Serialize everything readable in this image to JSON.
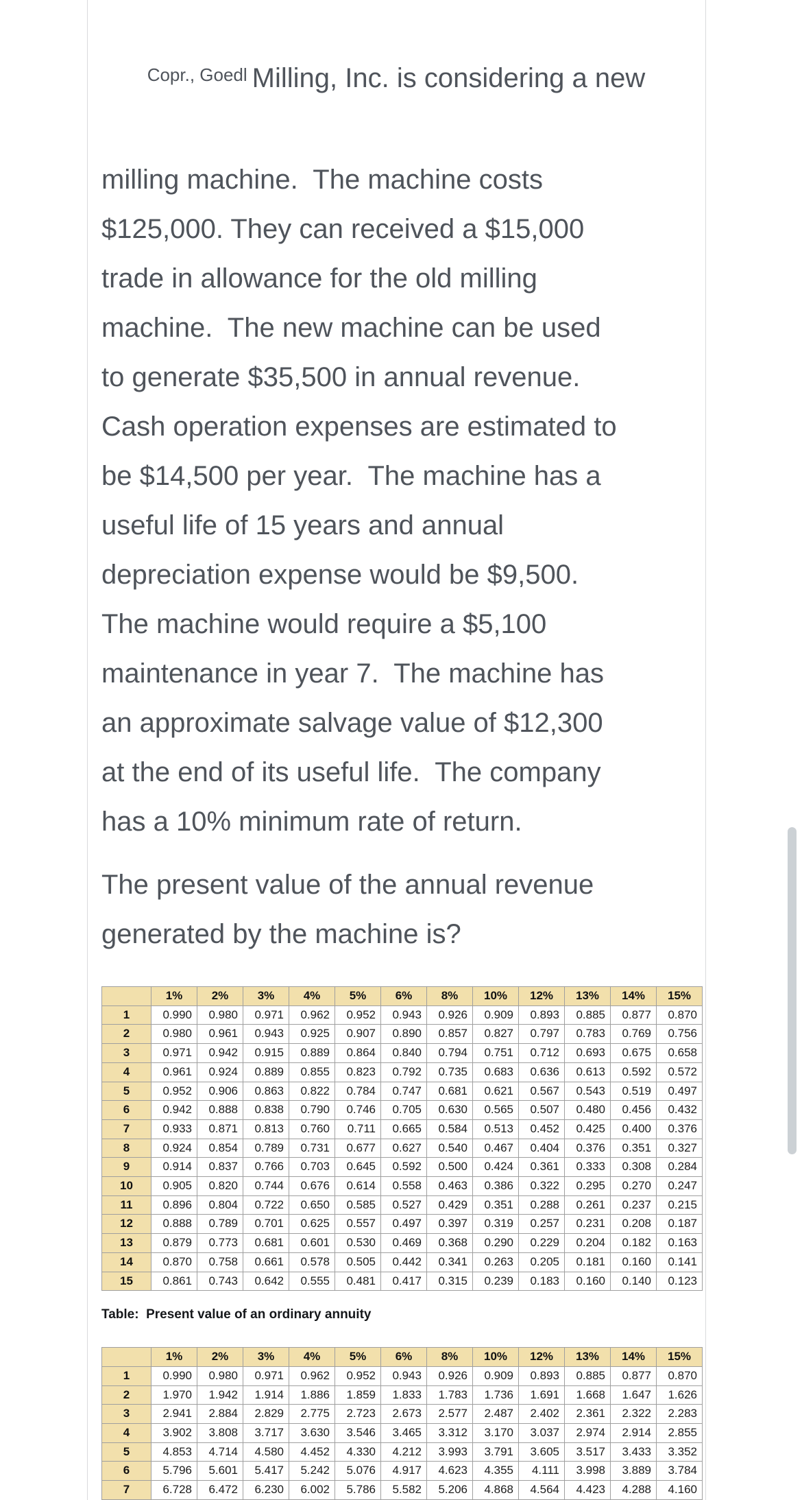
{
  "intro_paragraph": {
    "watermark": "Copr., Goedl",
    "first_line": "Milling, Inc. is considering a new",
    "lines": [
      "milling machine.  The machine costs",
      "$125,000. They can received a $15,000",
      "trade in allowance for the old milling",
      "machine.  The new machine can be used",
      "to generate $35,500 in annual revenue.",
      "Cash operation expenses are estimated to",
      "be $14,500 per year.  The machine has a",
      "useful life of 15 years and annual",
      "depreciation expense would be $9,500.",
      "The machine would require a $5,100",
      "maintenance in year 7.  The machine has",
      "an approximate salvage value of $12,300",
      "at the end of its useful life.  The company",
      "has a 10% minimum rate of return."
    ]
  },
  "question": {
    "lines": [
      "The present value of the annual revenue",
      "generated by the machine is?"
    ]
  },
  "annuity_caption": "Table:  Present value of an ordinary annuity",
  "tables": {
    "present_value_of_1": {
      "headers": [
        "1%",
        "2%",
        "3%",
        "4%",
        "5%",
        "6%",
        "8%",
        "10%",
        "12%",
        "13%",
        "14%",
        "15%"
      ],
      "rows": [
        {
          "period": "1",
          "values": [
            "0.990",
            "0.980",
            "0.971",
            "0.962",
            "0.952",
            "0.943",
            "0.926",
            "0.909",
            "0.893",
            "0.885",
            "0.877",
            "0.870"
          ]
        },
        {
          "period": "2",
          "values": [
            "0.980",
            "0.961",
            "0.943",
            "0.925",
            "0.907",
            "0.890",
            "0.857",
            "0.827",
            "0.797",
            "0.783",
            "0.769",
            "0.756"
          ]
        },
        {
          "period": "3",
          "values": [
            "0.971",
            "0.942",
            "0.915",
            "0.889",
            "0.864",
            "0.840",
            "0.794",
            "0.751",
            "0.712",
            "0.693",
            "0.675",
            "0.658"
          ]
        },
        {
          "period": "4",
          "values": [
            "0.961",
            "0.924",
            "0.889",
            "0.855",
            "0.823",
            "0.792",
            "0.735",
            "0.683",
            "0.636",
            "0.613",
            "0.592",
            "0.572"
          ]
        },
        {
          "period": "5",
          "values": [
            "0.952",
            "0.906",
            "0.863",
            "0.822",
            "0.784",
            "0.747",
            "0.681",
            "0.621",
            "0.567",
            "0.543",
            "0.519",
            "0.497"
          ]
        },
        {
          "period": "6",
          "values": [
            "0.942",
            "0.888",
            "0.838",
            "0.790",
            "0.746",
            "0.705",
            "0.630",
            "0.565",
            "0.507",
            "0.480",
            "0.456",
            "0.432"
          ]
        },
        {
          "period": "7",
          "values": [
            "0.933",
            "0.871",
            "0.813",
            "0.760",
            "0.711",
            "0.665",
            "0.584",
            "0.513",
            "0.452",
            "0.425",
            "0.400",
            "0.376"
          ]
        },
        {
          "period": "8",
          "values": [
            "0.924",
            "0.854",
            "0.789",
            "0.731",
            "0.677",
            "0.627",
            "0.540",
            "0.467",
            "0.404",
            "0.376",
            "0.351",
            "0.327"
          ]
        },
        {
          "period": "9",
          "values": [
            "0.914",
            "0.837",
            "0.766",
            "0.703",
            "0.645",
            "0.592",
            "0.500",
            "0.424",
            "0.361",
            "0.333",
            "0.308",
            "0.284"
          ]
        },
        {
          "period": "10",
          "values": [
            "0.905",
            "0.820",
            "0.744",
            "0.676",
            "0.614",
            "0.558",
            "0.463",
            "0.386",
            "0.322",
            "0.295",
            "0.270",
            "0.247"
          ]
        },
        {
          "period": "11",
          "values": [
            "0.896",
            "0.804",
            "0.722",
            "0.650",
            "0.585",
            "0.527",
            "0.429",
            "0.351",
            "0.288",
            "0.261",
            "0.237",
            "0.215"
          ]
        },
        {
          "period": "12",
          "values": [
            "0.888",
            "0.789",
            "0.701",
            "0.625",
            "0.557",
            "0.497",
            "0.397",
            "0.319",
            "0.257",
            "0.231",
            "0.208",
            "0.187"
          ]
        },
        {
          "period": "13",
          "values": [
            "0.879",
            "0.773",
            "0.681",
            "0.601",
            "0.530",
            "0.469",
            "0.368",
            "0.290",
            "0.229",
            "0.204",
            "0.182",
            "0.163"
          ]
        },
        {
          "period": "14",
          "values": [
            "0.870",
            "0.758",
            "0.661",
            "0.578",
            "0.505",
            "0.442",
            "0.341",
            "0.263",
            "0.205",
            "0.181",
            "0.160",
            "0.141"
          ]
        },
        {
          "period": "15",
          "values": [
            "0.861",
            "0.743",
            "0.642",
            "0.555",
            "0.481",
            "0.417",
            "0.315",
            "0.239",
            "0.183",
            "0.160",
            "0.140",
            "0.123"
          ]
        }
      ]
    },
    "present_value_ordinary_annuity": {
      "headers": [
        "1%",
        "2%",
        "3%",
        "4%",
        "5%",
        "6%",
        "8%",
        "10%",
        "12%",
        "13%",
        "14%",
        "15%"
      ],
      "rows": [
        {
          "period": "1",
          "values": [
            "0.990",
            "0.980",
            "0.971",
            "0.962",
            "0.952",
            "0.943",
            "0.926",
            "0.909",
            "0.893",
            "0.885",
            "0.877",
            "0.870"
          ]
        },
        {
          "period": "2",
          "values": [
            "1.970",
            "1.942",
            "1.914",
            "1.886",
            "1.859",
            "1.833",
            "1.783",
            "1.736",
            "1.691",
            "1.668",
            "1.647",
            "1.626"
          ]
        },
        {
          "period": "3",
          "values": [
            "2.941",
            "2.884",
            "2.829",
            "2.775",
            "2.723",
            "2.673",
            "2.577",
            "2.487",
            "2.402",
            "2.361",
            "2.322",
            "2.283"
          ]
        },
        {
          "period": "4",
          "values": [
            "3.902",
            "3.808",
            "3.717",
            "3.630",
            "3.546",
            "3.465",
            "3.312",
            "3.170",
            "3.037",
            "2.974",
            "2.914",
            "2.855"
          ]
        },
        {
          "period": "5",
          "values": [
            "4.853",
            "4.714",
            "4.580",
            "4.452",
            "4.330",
            "4.212",
            "3.993",
            "3.791",
            "3.605",
            "3.517",
            "3.433",
            "3.352"
          ]
        },
        {
          "period": "6",
          "values": [
            "5.796",
            "5.601",
            "5.417",
            "5.242",
            "5.076",
            "4.917",
            "4.623",
            "4.355",
            "4.111",
            "3.998",
            "3.889",
            "3.784"
          ]
        },
        {
          "period": "7",
          "values": [
            "6.728",
            "6.472",
            "6.230",
            "6.002",
            "5.786",
            "5.582",
            "5.206",
            "4.868",
            "4.564",
            "4.423",
            "4.288",
            "4.160"
          ]
        }
      ]
    }
  },
  "colors": {
    "table_header_bg": "#f2e0ac",
    "table_border": "#9f9f9f",
    "body_text": "#4f545b",
    "table_text": "#1c1c1c",
    "page_border": "#d9dadc",
    "scrollbar_thumb": "#ccd1d5"
  }
}
